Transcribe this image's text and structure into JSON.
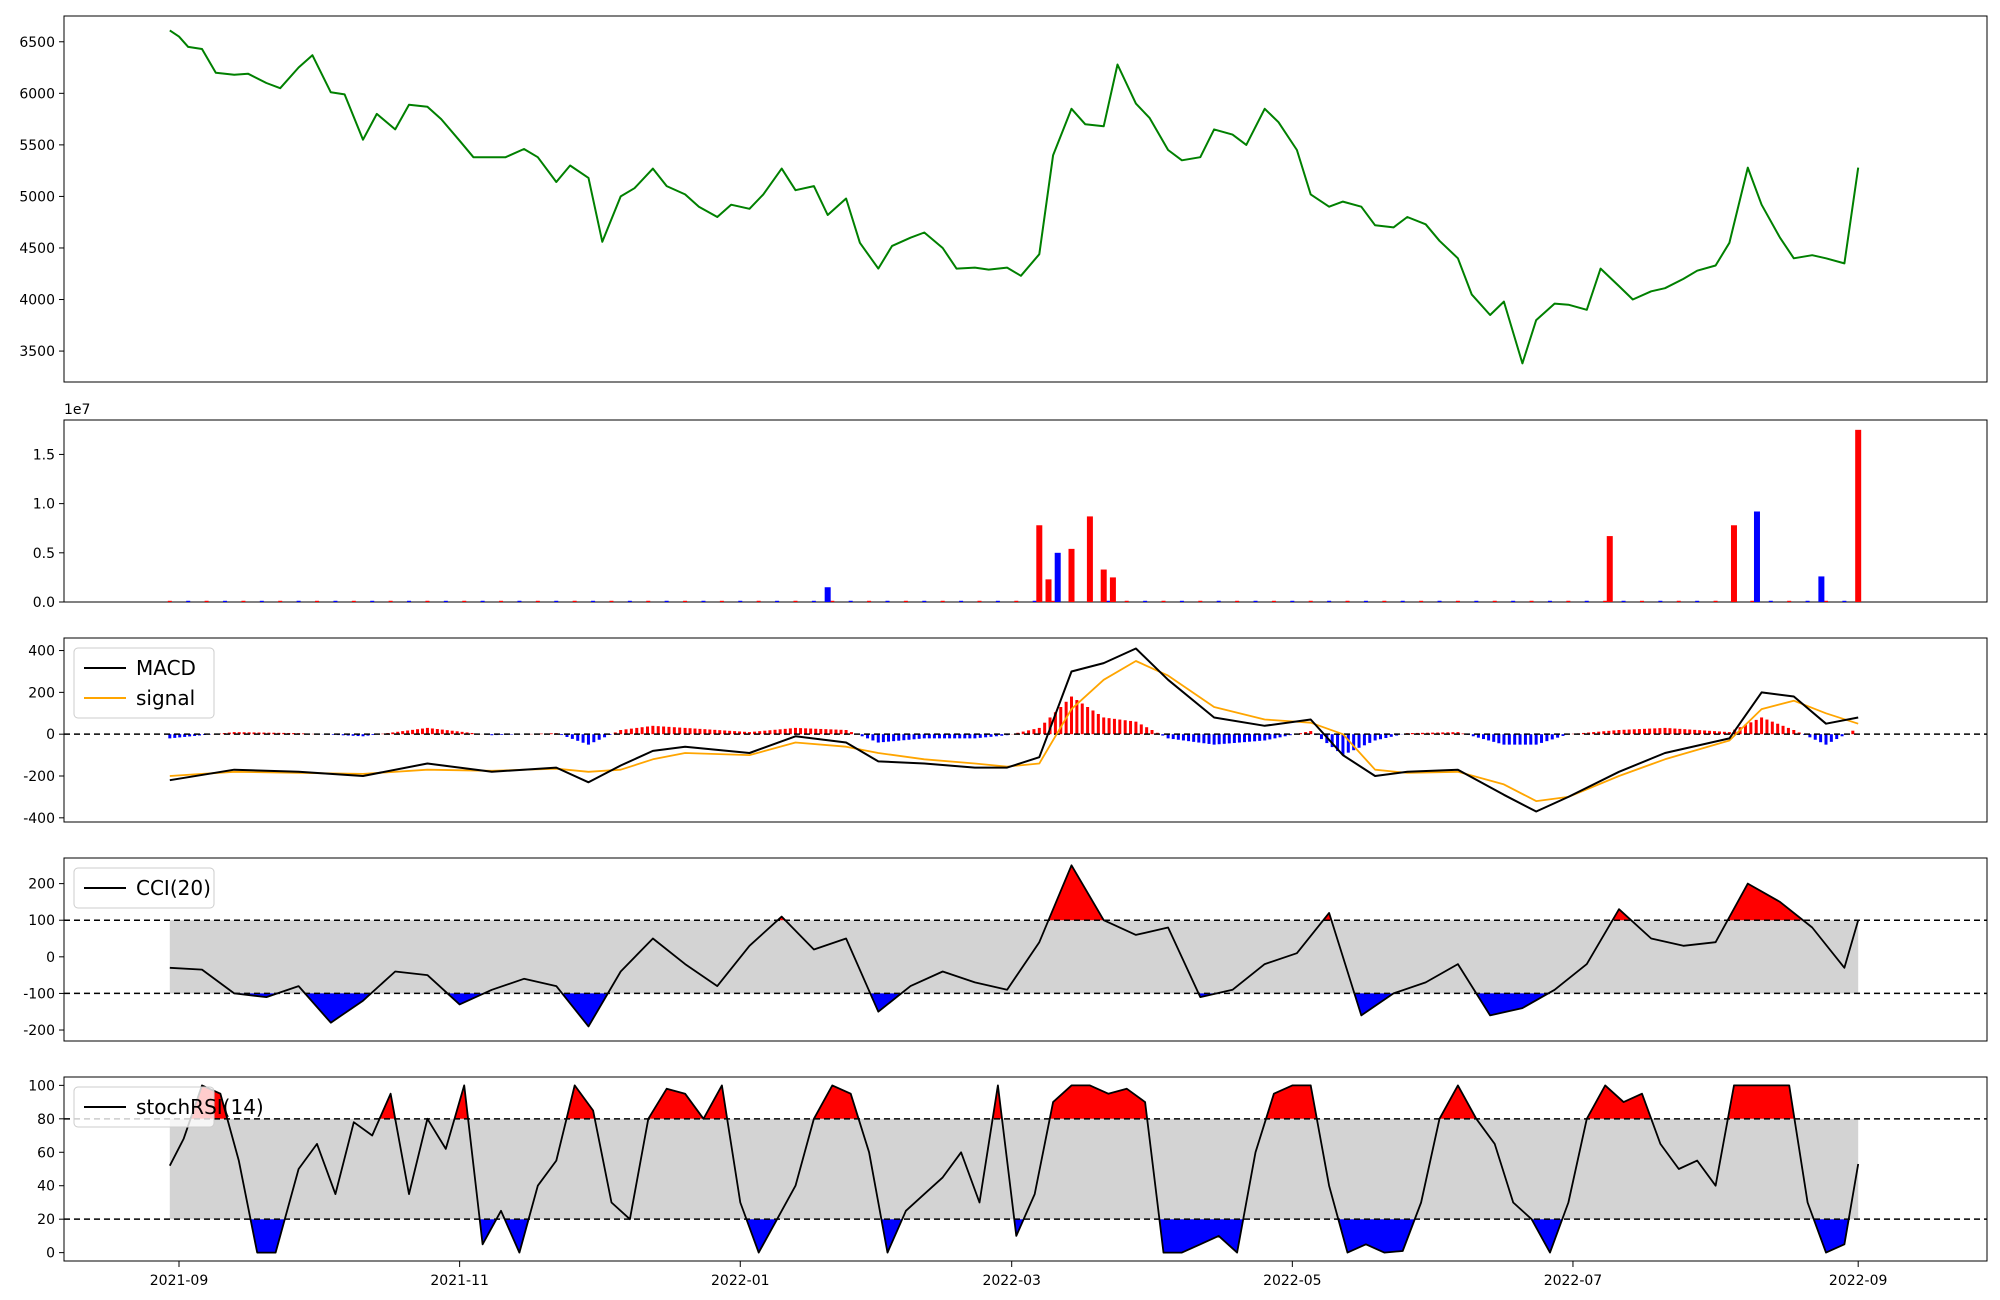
{
  "chart_data": [
    {
      "type": "line",
      "panel": "price",
      "x_dates": [
        "2021-08-30",
        "2021-09-01",
        "2021-09-03",
        "2021-09-06",
        "2021-09-09",
        "2021-09-13",
        "2021-09-16",
        "2021-09-20",
        "2021-09-23",
        "2021-09-27",
        "2021-09-30",
        "2021-10-04",
        "2021-10-07",
        "2021-10-11",
        "2021-10-14",
        "2021-10-18",
        "2021-10-21",
        "2021-10-25",
        "2021-10-28",
        "2021-11-01",
        "2021-11-04",
        "2021-11-08",
        "2021-11-11",
        "2021-11-15",
        "2021-11-18",
        "2021-11-22",
        "2021-11-25",
        "2021-11-29",
        "2021-12-02",
        "2021-12-06",
        "2021-12-09",
        "2021-12-13",
        "2021-12-16",
        "2021-12-20",
        "2021-12-23",
        "2021-12-27",
        "2021-12-30",
        "2022-01-03",
        "2022-01-06",
        "2022-01-10",
        "2022-01-13",
        "2022-01-17",
        "2022-01-20",
        "2022-01-24",
        "2022-01-27",
        "2022-01-31",
        "2022-02-03",
        "2022-02-07",
        "2022-02-10",
        "2022-02-14",
        "2022-02-17",
        "2022-02-21",
        "2022-02-24",
        "2022-02-28",
        "2022-03-03",
        "2022-03-07",
        "2022-03-10",
        "2022-03-14",
        "2022-03-17",
        "2022-03-21",
        "2022-03-24",
        "2022-03-28",
        "2022-03-31",
        "2022-04-04",
        "2022-04-07",
        "2022-04-11",
        "2022-04-14",
        "2022-04-18",
        "2022-04-21",
        "2022-04-25",
        "2022-04-28",
        "2022-05-02",
        "2022-05-05",
        "2022-05-09",
        "2022-05-12",
        "2022-05-16",
        "2022-05-19",
        "2022-05-23",
        "2022-05-26",
        "2022-05-30",
        "2022-06-02",
        "2022-06-06",
        "2022-06-09",
        "2022-06-13",
        "2022-06-16",
        "2022-06-20",
        "2022-06-23",
        "2022-06-27",
        "2022-06-30",
        "2022-07-04",
        "2022-07-07",
        "2022-07-11",
        "2022-07-14",
        "2022-07-18",
        "2022-07-21",
        "2022-07-25",
        "2022-07-28",
        "2022-08-01",
        "2022-08-04",
        "2022-08-08",
        "2022-08-11",
        "2022-08-15",
        "2022-08-18",
        "2022-08-22",
        "2022-08-25",
        "2022-08-29",
        "2022-09-01"
      ],
      "series": [
        {
          "color": "#008000",
          "values": [
            6610,
            6550,
            6450,
            6430,
            6200,
            6180,
            6190,
            6100,
            6050,
            6250,
            6370,
            6010,
            5990,
            5550,
            5800,
            5650,
            5890,
            5870,
            5750,
            5540,
            5380,
            5380,
            5380,
            5460,
            5380,
            5140,
            5300,
            5180,
            4560,
            5000,
            5080,
            5270,
            5100,
            5020,
            4900,
            4800,
            4920,
            4880,
            5020,
            5270,
            5060,
            5100,
            4820,
            4980,
            4550,
            4300,
            4520,
            4600,
            4650,
            4500,
            4300,
            4310,
            4290,
            4310,
            4230,
            4440,
            5400,
            5850,
            5700,
            5680,
            6280,
            5900,
            5760,
            5450,
            5350,
            5380,
            5650,
            5600,
            5500,
            5850,
            5720,
            5450,
            5020,
            4900,
            4950,
            4900,
            4720,
            4700,
            4800,
            4730,
            4570,
            4400,
            4050,
            3850,
            3980,
            3380,
            3800,
            3960,
            3950,
            3900,
            4300,
            4130,
            4000,
            4080,
            4110,
            4200,
            4280,
            4330,
            4550,
            5280,
            4920,
            4600,
            4400,
            4430,
            4400,
            4350,
            5280
          ]
        }
      ],
      "ylim": [
        3200,
        6750
      ],
      "yticks": [
        3500,
        4000,
        4500,
        5000,
        5500,
        6000,
        6500
      ]
    },
    {
      "type": "bar",
      "panel": "volume",
      "scale_label": "1e7",
      "x_dates": [
        "2022-03-07",
        "2022-03-09",
        "2022-03-11",
        "2022-03-14",
        "2022-03-18",
        "2022-03-21",
        "2022-03-23",
        "2022-01-20",
        "2022-07-09",
        "2022-08-05",
        "2022-08-10",
        "2022-08-24",
        "2022-09-01"
      ],
      "series": [
        {
          "name": "",
          "color": "#ff0000",
          "values": [
            7800000,
            2300000,
            0,
            5400000,
            8700000,
            3300000,
            2500000,
            0,
            6700000,
            7800000,
            0,
            0,
            17500000
          ]
        },
        {
          "name": "",
          "color": "#0000ff",
          "values": [
            0,
            0,
            5000000,
            0,
            0,
            0,
            0,
            1500000,
            0,
            0,
            9200000,
            2600000,
            0
          ]
        }
      ],
      "ylim": [
        0,
        18500000
      ],
      "yticks": [
        0,
        5000000,
        10000000,
        15000000
      ],
      "ytick_labels": [
        "0.0",
        "0.5",
        "1.0",
        "1.5"
      ]
    },
    {
      "type": "line",
      "panel": "macd",
      "legend_position": "top-left",
      "x_dates": [
        "2021-08-30",
        "2021-09-13",
        "2021-09-27",
        "2021-10-11",
        "2021-10-25",
        "2021-11-08",
        "2021-11-22",
        "2021-11-29",
        "2021-12-06",
        "2021-12-13",
        "2021-12-20",
        "2022-01-03",
        "2022-01-13",
        "2022-01-24",
        "2022-01-31",
        "2022-02-10",
        "2022-02-21",
        "2022-02-28",
        "2022-03-07",
        "2022-03-14",
        "2022-03-21",
        "2022-03-28",
        "2022-04-04",
        "2022-04-14",
        "2022-04-25",
        "2022-05-05",
        "2022-05-12",
        "2022-05-19",
        "2022-05-26",
        "2022-06-06",
        "2022-06-16",
        "2022-06-23",
        "2022-06-30",
        "2022-07-11",
        "2022-07-21",
        "2022-08-04",
        "2022-08-11",
        "2022-08-18",
        "2022-08-25",
        "2022-09-01"
      ],
      "series": [
        {
          "name": "MACD",
          "color": "#000000",
          "values": [
            -220,
            -170,
            -180,
            -200,
            -140,
            -180,
            -160,
            -230,
            -150,
            -80,
            -60,
            -90,
            -10,
            -40,
            -130,
            -140,
            -160,
            -160,
            -110,
            300,
            340,
            410,
            260,
            80,
            40,
            70,
            -100,
            -200,
            -180,
            -170,
            -290,
            -370,
            -300,
            -180,
            -90,
            -20,
            200,
            180,
            50,
            80
          ]
        },
        {
          "name": "signal",
          "color": "#ffa500",
          "values": [
            -200,
            -180,
            -185,
            -190,
            -170,
            -175,
            -165,
            -180,
            -170,
            -120,
            -90,
            -100,
            -40,
            -60,
            -90,
            -120,
            -140,
            -155,
            -140,
            120,
            260,
            350,
            280,
            130,
            70,
            55,
            0,
            -170,
            -185,
            -180,
            -240,
            -320,
            -300,
            -200,
            -120,
            -30,
            120,
            160,
            100,
            50
          ]
        }
      ],
      "histogram": {
        "pos_color": "#ff0000",
        "neg_color": "#0000ff"
      },
      "ylim": [
        -420,
        460
      ],
      "yticks": [
        -400,
        -200,
        0,
        200,
        400
      ]
    },
    {
      "type": "line",
      "panel": "cci",
      "legend_position": "top-left",
      "x_dates": [
        "2021-08-30",
        "2021-09-06",
        "2021-09-13",
        "2021-09-20",
        "2021-09-27",
        "2021-10-04",
        "2021-10-11",
        "2021-10-18",
        "2021-10-25",
        "2021-11-01",
        "2021-11-08",
        "2021-11-15",
        "2021-11-22",
        "2021-11-29",
        "2021-12-06",
        "2021-12-13",
        "2021-12-20",
        "2021-12-27",
        "2022-01-03",
        "2022-01-10",
        "2022-01-17",
        "2022-01-24",
        "2022-01-31",
        "2022-02-07",
        "2022-02-14",
        "2022-02-21",
        "2022-02-28",
        "2022-03-07",
        "2022-03-14",
        "2022-03-21",
        "2022-03-28",
        "2022-04-04",
        "2022-04-11",
        "2022-04-18",
        "2022-04-25",
        "2022-05-02",
        "2022-05-09",
        "2022-05-16",
        "2022-05-23",
        "2022-05-30",
        "2022-06-06",
        "2022-06-13",
        "2022-06-20",
        "2022-06-27",
        "2022-07-04",
        "2022-07-11",
        "2022-07-18",
        "2022-07-25",
        "2022-08-01",
        "2022-08-08",
        "2022-08-15",
        "2022-08-22",
        "2022-08-29",
        "2022-09-01"
      ],
      "series": [
        {
          "name": "CCI(20)",
          "color": "#000000",
          "values": [
            -30,
            -35,
            -100,
            -110,
            -80,
            -180,
            -120,
            -40,
            -50,
            -130,
            -90,
            -60,
            -80,
            -190,
            -40,
            50,
            -20,
            -80,
            30,
            110,
            20,
            50,
            -150,
            -80,
            -40,
            -70,
            -90,
            40,
            250,
            100,
            60,
            80,
            -110,
            -90,
            -20,
            10,
            120,
            -160,
            -100,
            -70,
            -20,
            -160,
            -140,
            -90,
            -20,
            130,
            50,
            30,
            40,
            200,
            150,
            80,
            -30,
            100
          ]
        }
      ],
      "ylim": [
        -230,
        270
      ],
      "yticks": [
        -200,
        -100,
        0,
        100,
        200
      ],
      "bands": {
        "upper": 100,
        "lower": -100,
        "band_color": "#d3d3d3",
        "over_color": "#ff0000",
        "under_color": "#0000ff"
      }
    },
    {
      "type": "line",
      "panel": "stochrsi",
      "legend_position": "top-left",
      "x_dates": [
        "2021-08-30",
        "2021-09-02",
        "2021-09-06",
        "2021-09-10",
        "2021-09-14",
        "2021-09-18",
        "2021-09-22",
        "2021-09-27",
        "2021-10-01",
        "2021-10-05",
        "2021-10-09",
        "2021-10-13",
        "2021-10-17",
        "2021-10-21",
        "2021-10-25",
        "2021-10-29",
        "2021-11-02",
        "2021-11-06",
        "2021-11-10",
        "2021-11-14",
        "2021-11-18",
        "2021-11-22",
        "2021-11-26",
        "2021-11-30",
        "2021-12-04",
        "2021-12-08",
        "2021-12-12",
        "2021-12-16",
        "2021-12-20",
        "2021-12-24",
        "2021-12-28",
        "2022-01-01",
        "2022-01-05",
        "2022-01-09",
        "2022-01-13",
        "2022-01-17",
        "2022-01-21",
        "2022-01-25",
        "2022-01-29",
        "2022-02-02",
        "2022-02-06",
        "2022-02-10",
        "2022-02-14",
        "2022-02-18",
        "2022-02-22",
        "2022-02-26",
        "2022-03-02",
        "2022-03-06",
        "2022-03-10",
        "2022-03-14",
        "2022-03-18",
        "2022-03-22",
        "2022-03-26",
        "2022-03-30",
        "2022-04-03",
        "2022-04-07",
        "2022-04-11",
        "2022-04-15",
        "2022-04-19",
        "2022-04-23",
        "2022-04-27",
        "2022-05-01",
        "2022-05-05",
        "2022-05-09",
        "2022-05-13",
        "2022-05-17",
        "2022-05-21",
        "2022-05-25",
        "2022-05-29",
        "2022-06-02",
        "2022-06-06",
        "2022-06-10",
        "2022-06-14",
        "2022-06-18",
        "2022-06-22",
        "2022-06-26",
        "2022-06-30",
        "2022-07-04",
        "2022-07-08",
        "2022-07-12",
        "2022-07-16",
        "2022-07-20",
        "2022-07-24",
        "2022-07-28",
        "2022-08-01",
        "2022-08-05",
        "2022-08-09",
        "2022-08-13",
        "2022-08-17",
        "2022-08-21",
        "2022-08-25",
        "2022-08-29",
        "2022-09-01"
      ],
      "series": [
        {
          "name": "stochRSI(14)",
          "color": "#000000",
          "values": [
            52,
            68,
            100,
            95,
            55,
            0,
            0,
            50,
            65,
            35,
            78,
            70,
            95,
            35,
            80,
            62,
            100,
            5,
            25,
            0,
            40,
            55,
            100,
            85,
            30,
            20,
            80,
            98,
            95,
            80,
            100,
            30,
            0,
            20,
            40,
            80,
            100,
            95,
            60,
            0,
            25,
            35,
            45,
            60,
            30,
            100,
            10,
            35,
            90,
            100,
            100,
            95,
            98,
            90,
            0,
            0,
            5,
            10,
            0,
            60,
            95,
            100,
            100,
            40,
            0,
            5,
            0,
            1,
            30,
            80,
            100,
            80,
            65,
            30,
            20,
            0,
            30,
            80,
            100,
            90,
            95,
            65,
            50,
            55,
            40,
            100,
            100,
            100,
            100,
            30,
            0,
            5,
            53
          ]
        }
      ],
      "ylim": [
        -5,
        105
      ],
      "yticks": [
        0,
        20,
        40,
        60,
        80,
        100
      ],
      "bands": {
        "upper": 80,
        "lower": 20,
        "band_color": "#d3d3d3",
        "over_color": "#ff0000",
        "under_color": "#0000ff"
      }
    }
  ],
  "x_axis": {
    "ticks": [
      "2021-09-01",
      "2021-11-01",
      "2022-01-01",
      "2022-03-01",
      "2022-05-01",
      "2022-07-01",
      "2022-09-01"
    ],
    "tick_labels": [
      "2021-09",
      "2021-11",
      "2022-01",
      "2022-03",
      "2022-05",
      "2022-07",
      "2022-09"
    ],
    "range": [
      "2021-08-07",
      "2022-09-29"
    ]
  }
}
